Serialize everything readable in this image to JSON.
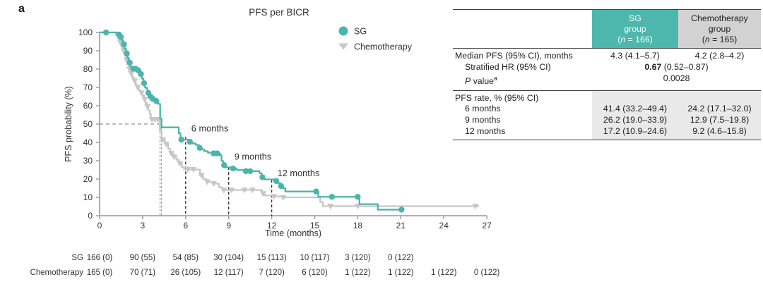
{
  "panel_label": "a",
  "colors": {
    "sg": "#4bb4ac",
    "sg_header": "#4db7ae",
    "chemo_curve": "#c7c7c7",
    "chemo_header": "#d2d2d2",
    "axis": "#999999",
    "guide_dark": "#2b2b2b",
    "median_gray_dash": "#b9b9b9",
    "fifty_dash": "#909090",
    "shade": "#e9e9e9"
  },
  "chart_data": {
    "type": "line",
    "subtype": "kaplan-meier-step",
    "title": "PFS per BICR",
    "xlabel": "Time (months)",
    "ylabel": "PFS probability (%)",
    "xlim": [
      0,
      27
    ],
    "ylim": [
      0,
      100
    ],
    "xticks": [
      0,
      3,
      6,
      9,
      12,
      15,
      18,
      21,
      24,
      27
    ],
    "yticks": [
      0,
      10,
      20,
      30,
      40,
      50,
      60,
      70,
      80,
      90,
      100
    ],
    "grid": false,
    "legend_position": "upper right inside",
    "legend": [
      {
        "name": "SG",
        "marker": "circle"
      },
      {
        "name": "Chemotherapy",
        "marker": "triangle-down"
      }
    ],
    "series": [
      {
        "name": "Chemotherapy",
        "start_probability": 100,
        "end_time": 26.45,
        "steps": [
          [
            1.15,
            98.5
          ],
          [
            1.28,
            96.5
          ],
          [
            1.4,
            94.5
          ],
          [
            1.52,
            92
          ],
          [
            1.62,
            90
          ],
          [
            1.74,
            87.5
          ],
          [
            1.84,
            85
          ],
          [
            1.94,
            82.5
          ],
          [
            2.04,
            80
          ],
          [
            2.14,
            77.5
          ],
          [
            2.27,
            75.5
          ],
          [
            2.4,
            73.5
          ],
          [
            2.52,
            71.5
          ],
          [
            2.62,
            70
          ],
          [
            2.72,
            68.5
          ],
          [
            2.87,
            67
          ],
          [
            3.0,
            65.5
          ],
          [
            3.1,
            63.5
          ],
          [
            3.2,
            61.5
          ],
          [
            3.3,
            59.5
          ],
          [
            3.4,
            57.5
          ],
          [
            3.5,
            55.5
          ],
          [
            3.58,
            52.5
          ],
          [
            4.2,
            46
          ],
          [
            4.33,
            41.5
          ],
          [
            4.56,
            39
          ],
          [
            4.78,
            36.5
          ],
          [
            4.93,
            34
          ],
          [
            5.13,
            32
          ],
          [
            5.36,
            30.5
          ],
          [
            5.53,
            28.5
          ],
          [
            5.73,
            26.5
          ],
          [
            5.89,
            25.2
          ],
          [
            7.0,
            22
          ],
          [
            7.22,
            20
          ],
          [
            7.44,
            18.5
          ],
          [
            7.87,
            17.5
          ],
          [
            8.32,
            15.5
          ],
          [
            8.56,
            14
          ],
          [
            11.32,
            12
          ],
          [
            11.52,
            11
          ],
          [
            12.08,
            10.5
          ],
          [
            12.74,
            10
          ],
          [
            15.38,
            7.5
          ],
          [
            15.56,
            5.2
          ]
        ],
        "censors": [
          [
            1.45,
            94.5
          ],
          [
            1.67,
            90
          ],
          [
            1.88,
            85
          ],
          [
            2.08,
            80
          ],
          [
            2.2,
            77.5
          ],
          [
            2.45,
            73.5
          ],
          [
            2.66,
            70
          ],
          [
            2.92,
            67
          ],
          [
            3.14,
            63.5
          ],
          [
            3.34,
            59.5
          ],
          [
            3.65,
            52.5
          ],
          [
            3.85,
            52.5
          ],
          [
            4.05,
            52.5
          ],
          [
            4.4,
            41.5
          ],
          [
            4.65,
            39
          ],
          [
            5.0,
            34
          ],
          [
            5.2,
            32
          ],
          [
            5.6,
            28.5
          ],
          [
            6.15,
            25.2
          ],
          [
            6.55,
            25.2
          ],
          [
            7.1,
            22
          ],
          [
            7.5,
            18.5
          ],
          [
            7.95,
            17.5
          ],
          [
            8.65,
            14
          ],
          [
            9.2,
            14
          ],
          [
            10.1,
            14
          ],
          [
            10.65,
            14
          ],
          [
            11.4,
            12
          ],
          [
            12.15,
            10.5
          ],
          [
            12.8,
            10
          ],
          [
            16.1,
            5.2
          ],
          [
            18.0,
            5.2
          ],
          [
            26.2,
            5.2
          ]
        ]
      },
      {
        "name": "SG",
        "start_probability": 100,
        "end_time": 21.1,
        "steps": [
          [
            1.2,
            98.8
          ],
          [
            1.42,
            97.5
          ],
          [
            1.55,
            95.5
          ],
          [
            1.65,
            93.5
          ],
          [
            1.75,
            91
          ],
          [
            1.85,
            88.5
          ],
          [
            1.95,
            86
          ],
          [
            2.05,
            83.5
          ],
          [
            2.15,
            81.3
          ],
          [
            2.28,
            80.2
          ],
          [
            2.62,
            79.3
          ],
          [
            2.82,
            77.3
          ],
          [
            2.95,
            74.8
          ],
          [
            3.06,
            72.3
          ],
          [
            3.17,
            69.8
          ],
          [
            3.32,
            67
          ],
          [
            3.48,
            65
          ],
          [
            3.62,
            63.8
          ],
          [
            3.88,
            62.6
          ],
          [
            4.08,
            61
          ],
          [
            4.22,
            53
          ],
          [
            4.32,
            48.2
          ],
          [
            5.52,
            45
          ],
          [
            5.64,
            41.5
          ],
          [
            6.2,
            40.3
          ],
          [
            6.45,
            39.4
          ],
          [
            6.7,
            38.6
          ],
          [
            6.92,
            37
          ],
          [
            7.05,
            36.2
          ],
          [
            7.3,
            35.2
          ],
          [
            7.55,
            34.4
          ],
          [
            7.8,
            34
          ],
          [
            8.4,
            33
          ],
          [
            8.5,
            29.8
          ],
          [
            8.62,
            27.6
          ],
          [
            8.75,
            26.4
          ],
          [
            9.18,
            25.8
          ],
          [
            9.55,
            25
          ],
          [
            10.08,
            24.3
          ],
          [
            11.15,
            23.2
          ],
          [
            11.3,
            21
          ],
          [
            11.5,
            19.8
          ],
          [
            12.28,
            18.9
          ],
          [
            12.45,
            17.8
          ],
          [
            12.6,
            16.2
          ],
          [
            12.8,
            15
          ],
          [
            12.95,
            13.2
          ],
          [
            15.25,
            10.3
          ],
          [
            18.12,
            6.3
          ],
          [
            19.4,
            3.3
          ]
        ],
        "censors": [
          [
            0.45,
            100
          ],
          [
            1.35,
            98.8
          ],
          [
            1.48,
            97.5
          ],
          [
            1.7,
            93.5
          ],
          [
            1.9,
            88.5
          ],
          [
            2.1,
            83.5
          ],
          [
            2.35,
            80.2
          ],
          [
            2.5,
            80.2
          ],
          [
            2.7,
            79.3
          ],
          [
            2.88,
            77.3
          ],
          [
            3.1,
            72.3
          ],
          [
            3.4,
            67
          ],
          [
            3.55,
            65
          ],
          [
            3.7,
            63.8
          ],
          [
            3.95,
            62.6
          ],
          [
            5.7,
            41.5
          ],
          [
            6.3,
            40.3
          ],
          [
            6.98,
            37
          ],
          [
            7.95,
            34
          ],
          [
            8.2,
            34
          ],
          [
            8.68,
            27.6
          ],
          [
            9.3,
            25.8
          ],
          [
            10.2,
            24.3
          ],
          [
            10.5,
            24.3
          ],
          [
            11.35,
            21
          ],
          [
            12.32,
            18.9
          ],
          [
            12.65,
            16.2
          ],
          [
            15.1,
            13.2
          ],
          [
            16.2,
            10.3
          ],
          [
            18.0,
            10.3
          ],
          [
            21.05,
            3.3
          ]
        ]
      }
    ],
    "medians": {
      "probability": 50,
      "sg_months": 4.3,
      "chemo_months": 4.2
    },
    "guides": [
      {
        "t": 6,
        "top_p": 43,
        "label": "6 months",
        "label_p": 46
      },
      {
        "t": 9,
        "top_p": 26.5,
        "label": "9 months",
        "label_p": 30.5
      },
      {
        "t": 12,
        "top_p": 19.5,
        "label": "12 months",
        "label_p": 21.5
      }
    ],
    "risk_table": {
      "rows": [
        {
          "label": "SG",
          "values": [
            "166 (0)",
            "90 (55)",
            "54 (85)",
            "30 (104)",
            "15 (113)",
            "10 (117)",
            "3 (120)",
            "0 (122)"
          ]
        },
        {
          "label": "Chemotherapy",
          "values": [
            "165 (0)",
            "70 (71)",
            "26 (105)",
            "12 (117)",
            "7 (120)",
            "6 (120)",
            "1 (122)",
            "1 (122)",
            "1 (122)",
            "0 (122)"
          ]
        }
      ]
    }
  },
  "summary_table": {
    "headers": {
      "sg": {
        "line1": "SG",
        "line2": "group",
        "n_open": "(",
        "n_italic": "n",
        "n_rest": " = 166)"
      },
      "chemo": {
        "line1": "Chemotherapy",
        "line2": "group",
        "n_open": "(",
        "n_italic": "n",
        "n_rest": " = 165)"
      }
    },
    "rows": {
      "median": {
        "label": "Median PFS (95% CI), months",
        "sg": "4.3 (4.1–5.7)",
        "chemo": "4.2 (2.8–4.2)"
      },
      "hr": {
        "label": "Stratified HR (95% CI)",
        "bold": "0.67",
        "rest": " (0.52–0.87)"
      },
      "p_value": {
        "italic": "P",
        "rest": " value",
        "sup": "a",
        "value": "0.0028"
      },
      "rate_section": {
        "label": "PFS rate, % (95% CI)"
      },
      "rate6": {
        "label": "6 months",
        "sg": "41.4 (33.2–49.4)",
        "chemo": "24.2 (17.1–32.0)"
      },
      "rate9": {
        "label": "9 months",
        "sg": "26.2 (19.0–33.9)",
        "chemo": "12.9 (7.5–19.8)"
      },
      "rate12": {
        "label": "12 months",
        "sg": "17.2 (10.9–24.6)",
        "chemo": "9.2 (4.6–15.8)"
      }
    }
  }
}
